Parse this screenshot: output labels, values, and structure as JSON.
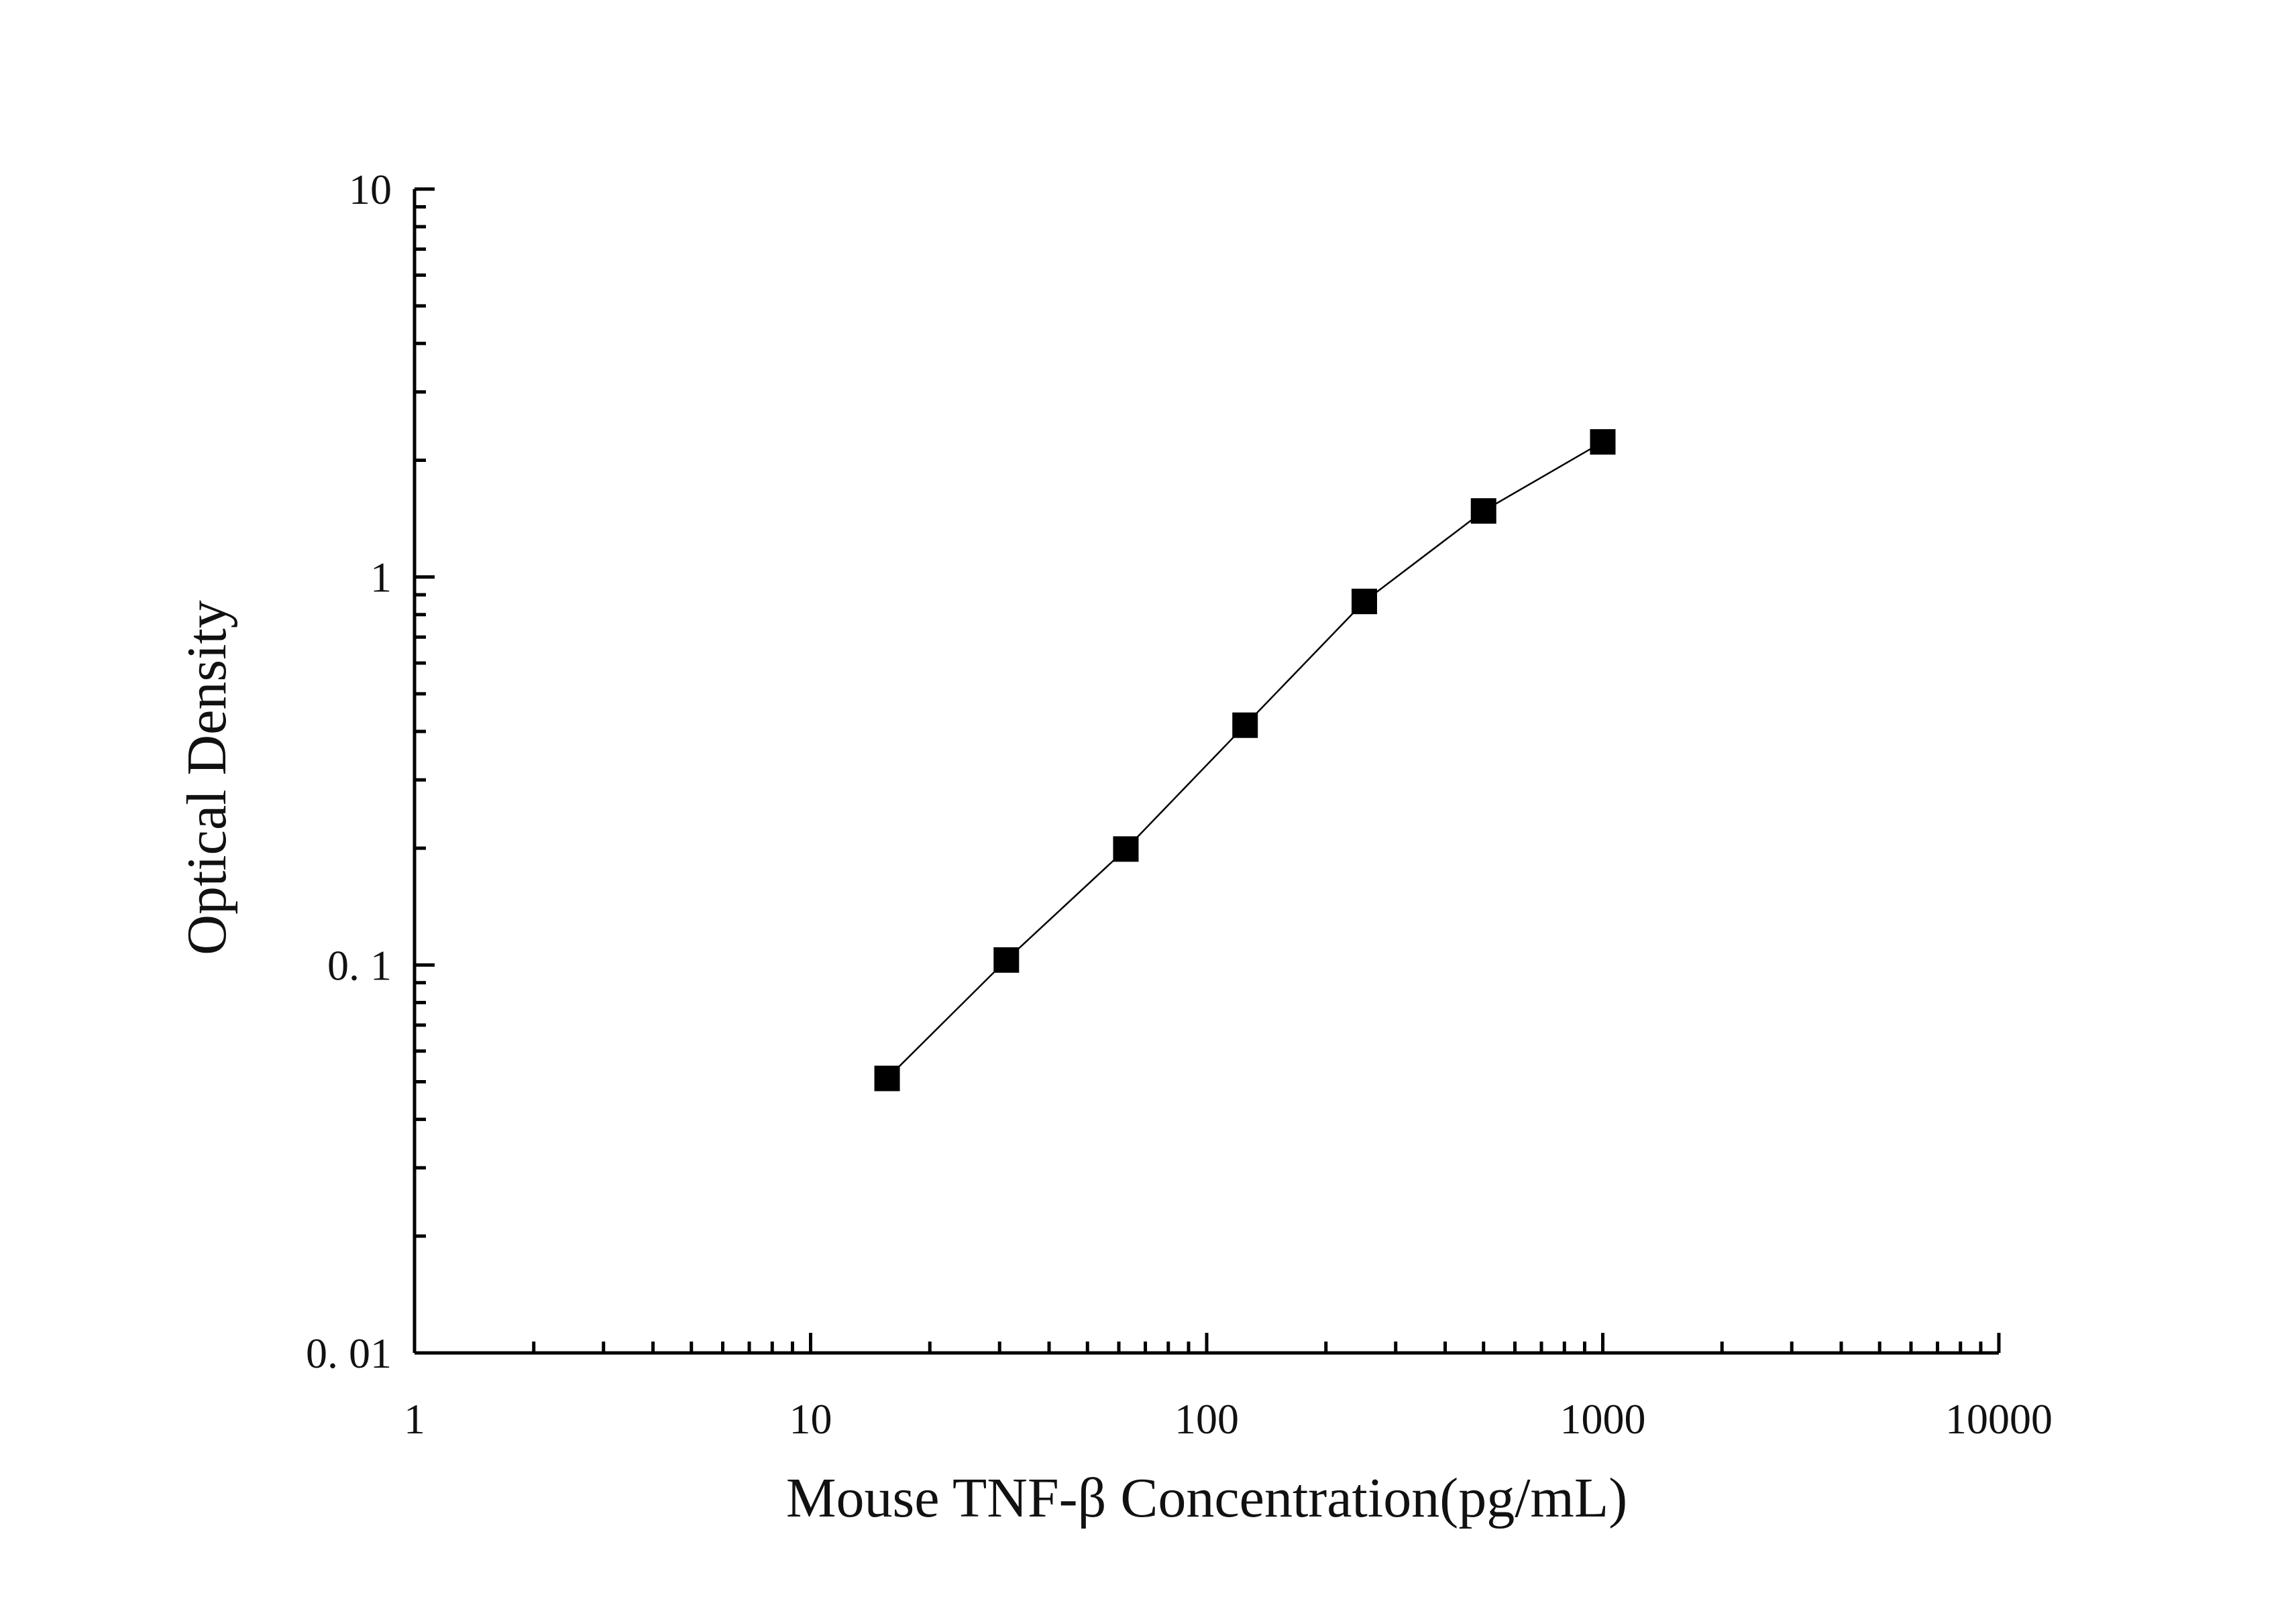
{
  "chart_data": {
    "type": "scatter",
    "xlabel": "Mouse TNF-β Concentration(pg/mL)",
    "ylabel": "Optical Density",
    "xscale": "log",
    "yscale": "log",
    "xlim": [
      1,
      10000
    ],
    "ylim": [
      0.01,
      10
    ],
    "x_ticks": [
      {
        "value": 1,
        "label": "1"
      },
      {
        "value": 10,
        "label": "10"
      },
      {
        "value": 100,
        "label": "100"
      },
      {
        "value": 1000,
        "label": "1000"
      },
      {
        "value": 10000,
        "label": "10000"
      }
    ],
    "y_ticks": [
      {
        "value": 0.01,
        "label": "0. 01"
      },
      {
        "value": 0.1,
        "label": "0. 1"
      },
      {
        "value": 1,
        "label": "1"
      },
      {
        "value": 10,
        "label": "10"
      }
    ],
    "grid": false,
    "legend": "none",
    "marker": "square",
    "color": "#000000",
    "series": [
      {
        "x": [
          15.6,
          31.2,
          62.5,
          125,
          250,
          500,
          1000
        ],
        "y": [
          0.051,
          0.103,
          0.199,
          0.415,
          0.865,
          1.48,
          2.23
        ]
      }
    ]
  }
}
